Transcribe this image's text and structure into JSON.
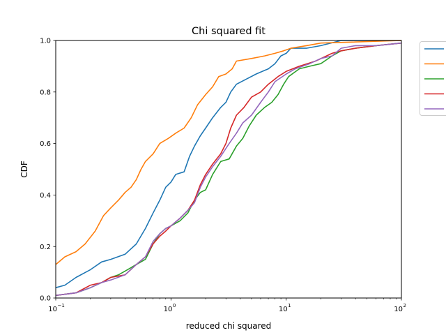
{
  "chart_data": {
    "type": "line",
    "title": "Chi squared fit",
    "xlabel": "reduced chi squared",
    "ylabel": "CDF",
    "xscale": "log",
    "xlim": [
      0.1,
      100
    ],
    "ylim": [
      0.0,
      1.0
    ],
    "grid": false,
    "legend_position": "outside-top-right",
    "x_ticks": [
      {
        "value": 0.1,
        "base": "10",
        "exp": "−1"
      },
      {
        "value": 1,
        "base": "10",
        "exp": "0"
      },
      {
        "value": 10,
        "base": "10",
        "exp": "1"
      },
      {
        "value": 100,
        "base": "10",
        "exp": "2"
      }
    ],
    "y_ticks": [
      {
        "value": 0.0,
        "label": "0.0"
      },
      {
        "value": 0.2,
        "label": "0.2"
      },
      {
        "value": 0.4,
        "label": "0.4"
      },
      {
        "value": 0.6,
        "label": "0.6"
      },
      {
        "value": 0.8,
        "label": "0.8"
      },
      {
        "value": 1.0,
        "label": "1.0"
      }
    ],
    "series": [
      {
        "color": "#1f77b4",
        "points": [
          [
            0.1,
            0.04
          ],
          [
            0.12,
            0.05
          ],
          [
            0.15,
            0.08
          ],
          [
            0.2,
            0.11
          ],
          [
            0.25,
            0.14
          ],
          [
            0.3,
            0.15
          ],
          [
            0.4,
            0.17
          ],
          [
            0.5,
            0.21
          ],
          [
            0.6,
            0.27
          ],
          [
            0.7,
            0.33
          ],
          [
            0.8,
            0.38
          ],
          [
            0.9,
            0.43
          ],
          [
            1.0,
            0.45
          ],
          [
            1.1,
            0.48
          ],
          [
            1.3,
            0.49
          ],
          [
            1.45,
            0.55
          ],
          [
            1.6,
            0.59
          ],
          [
            1.8,
            0.63
          ],
          [
            2.0,
            0.66
          ],
          [
            2.3,
            0.7
          ],
          [
            2.7,
            0.74
          ],
          [
            3.0,
            0.76
          ],
          [
            3.3,
            0.8
          ],
          [
            3.7,
            0.83
          ],
          [
            4.5,
            0.85
          ],
          [
            5.5,
            0.87
          ],
          [
            7.0,
            0.89
          ],
          [
            8.0,
            0.91
          ],
          [
            9.0,
            0.94
          ],
          [
            10,
            0.95
          ],
          [
            11,
            0.97
          ],
          [
            15,
            0.97
          ],
          [
            20,
            0.98
          ],
          [
            30,
            1.0
          ],
          [
            100,
            1.0
          ]
        ]
      },
      {
        "color": "#ff7f0e",
        "points": [
          [
            0.1,
            0.13
          ],
          [
            0.12,
            0.16
          ],
          [
            0.15,
            0.18
          ],
          [
            0.18,
            0.21
          ],
          [
            0.22,
            0.26
          ],
          [
            0.26,
            0.32
          ],
          [
            0.3,
            0.35
          ],
          [
            0.35,
            0.38
          ],
          [
            0.4,
            0.41
          ],
          [
            0.45,
            0.43
          ],
          [
            0.5,
            0.46
          ],
          [
            0.55,
            0.5
          ],
          [
            0.6,
            0.53
          ],
          [
            0.7,
            0.56
          ],
          [
            0.8,
            0.6
          ],
          [
            0.95,
            0.62
          ],
          [
            1.1,
            0.64
          ],
          [
            1.3,
            0.66
          ],
          [
            1.5,
            0.7
          ],
          [
            1.7,
            0.75
          ],
          [
            2.0,
            0.79
          ],
          [
            2.3,
            0.82
          ],
          [
            2.6,
            0.86
          ],
          [
            3.0,
            0.87
          ],
          [
            3.4,
            0.89
          ],
          [
            3.7,
            0.92
          ],
          [
            5.0,
            0.93
          ],
          [
            6.5,
            0.94
          ],
          [
            8.0,
            0.95
          ],
          [
            9.5,
            0.96
          ],
          [
            11,
            0.97
          ],
          [
            15,
            0.98
          ],
          [
            20,
            0.99
          ],
          [
            100,
            1.0
          ]
        ]
      },
      {
        "color": "#2ca02c",
        "points": [
          [
            0.1,
            0.01
          ],
          [
            0.15,
            0.02
          ],
          [
            0.2,
            0.04
          ],
          [
            0.25,
            0.06
          ],
          [
            0.3,
            0.08
          ],
          [
            0.35,
            0.09
          ],
          [
            0.42,
            0.11
          ],
          [
            0.5,
            0.13
          ],
          [
            0.6,
            0.15
          ],
          [
            0.7,
            0.21
          ],
          [
            0.8,
            0.25
          ],
          [
            0.9,
            0.27
          ],
          [
            1.0,
            0.28
          ],
          [
            1.2,
            0.3
          ],
          [
            1.4,
            0.33
          ],
          [
            1.6,
            0.38
          ],
          [
            1.8,
            0.41
          ],
          [
            2.0,
            0.42
          ],
          [
            2.3,
            0.48
          ],
          [
            2.7,
            0.53
          ],
          [
            3.2,
            0.54
          ],
          [
            3.7,
            0.59
          ],
          [
            4.2,
            0.62
          ],
          [
            4.8,
            0.67
          ],
          [
            5.5,
            0.71
          ],
          [
            6.5,
            0.74
          ],
          [
            7.5,
            0.76
          ],
          [
            8.5,
            0.79
          ],
          [
            9.5,
            0.83
          ],
          [
            10.5,
            0.86
          ],
          [
            13,
            0.89
          ],
          [
            16,
            0.9
          ],
          [
            20,
            0.91
          ],
          [
            25,
            0.94
          ],
          [
            30,
            0.96
          ],
          [
            40,
            0.97
          ],
          [
            60,
            0.98
          ],
          [
            100,
            0.99
          ]
        ]
      },
      {
        "color": "#d62728",
        "points": [
          [
            0.1,
            0.01
          ],
          [
            0.15,
            0.02
          ],
          [
            0.2,
            0.05
          ],
          [
            0.25,
            0.06
          ],
          [
            0.3,
            0.08
          ],
          [
            0.4,
            0.09
          ],
          [
            0.5,
            0.13
          ],
          [
            0.6,
            0.16
          ],
          [
            0.7,
            0.21
          ],
          [
            0.8,
            0.24
          ],
          [
            0.9,
            0.26
          ],
          [
            1.0,
            0.28
          ],
          [
            1.2,
            0.31
          ],
          [
            1.4,
            0.34
          ],
          [
            1.6,
            0.38
          ],
          [
            1.8,
            0.44
          ],
          [
            2.0,
            0.48
          ],
          [
            2.3,
            0.52
          ],
          [
            2.7,
            0.56
          ],
          [
            3.0,
            0.6
          ],
          [
            3.3,
            0.66
          ],
          [
            3.7,
            0.71
          ],
          [
            4.3,
            0.74
          ],
          [
            5.0,
            0.78
          ],
          [
            6.0,
            0.8
          ],
          [
            7.0,
            0.83
          ],
          [
            8.5,
            0.86
          ],
          [
            10,
            0.88
          ],
          [
            13,
            0.9
          ],
          [
            18,
            0.92
          ],
          [
            25,
            0.95
          ],
          [
            30,
            0.96
          ],
          [
            40,
            0.97
          ],
          [
            60,
            0.98
          ],
          [
            100,
            0.99
          ]
        ]
      },
      {
        "color": "#9467bd",
        "points": [
          [
            0.1,
            0.01
          ],
          [
            0.15,
            0.02
          ],
          [
            0.2,
            0.04
          ],
          [
            0.25,
            0.06
          ],
          [
            0.3,
            0.07
          ],
          [
            0.4,
            0.09
          ],
          [
            0.5,
            0.13
          ],
          [
            0.6,
            0.16
          ],
          [
            0.7,
            0.22
          ],
          [
            0.8,
            0.25
          ],
          [
            0.9,
            0.27
          ],
          [
            1.0,
            0.28
          ],
          [
            1.2,
            0.31
          ],
          [
            1.4,
            0.34
          ],
          [
            1.6,
            0.37
          ],
          [
            1.8,
            0.43
          ],
          [
            2.0,
            0.47
          ],
          [
            2.3,
            0.51
          ],
          [
            2.7,
            0.55
          ],
          [
            3.2,
            0.6
          ],
          [
            3.7,
            0.64
          ],
          [
            4.2,
            0.68
          ],
          [
            5.0,
            0.71
          ],
          [
            6.0,
            0.76
          ],
          [
            7.0,
            0.8
          ],
          [
            8.0,
            0.84
          ],
          [
            10,
            0.87
          ],
          [
            12,
            0.89
          ],
          [
            16,
            0.91
          ],
          [
            20,
            0.93
          ],
          [
            25,
            0.94
          ],
          [
            30,
            0.97
          ],
          [
            40,
            0.98
          ],
          [
            60,
            0.98
          ],
          [
            100,
            0.99
          ]
        ]
      }
    ]
  }
}
